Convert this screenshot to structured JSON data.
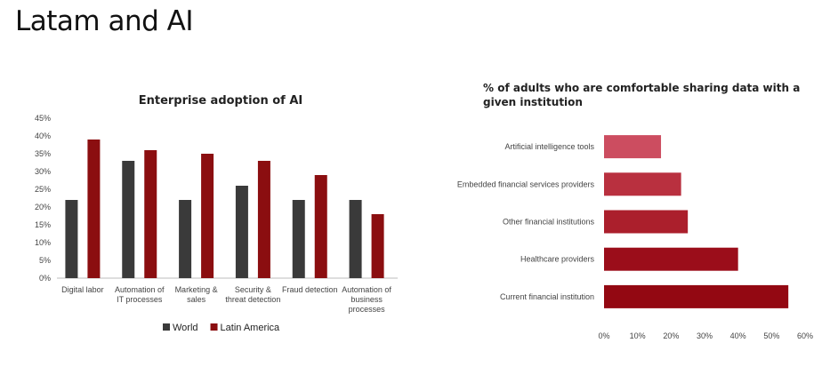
{
  "slide": {
    "title": "Latam and AI"
  },
  "chart_data": [
    {
      "type": "bar",
      "title": "Enterprise adoption of AI",
      "categories": [
        [
          "Digital labor"
        ],
        [
          "Automation of",
          "IT processes"
        ],
        [
          "Marketing &",
          "sales"
        ],
        [
          "Security &",
          "threat detection"
        ],
        [
          "Fraud detection"
        ],
        [
          "Automation of",
          "business",
          "processes"
        ]
      ],
      "series": [
        {
          "name": "World",
          "color": "#3a3a3a",
          "values": [
            22,
            33,
            22,
            26,
            22,
            22
          ]
        },
        {
          "name": "Latin America",
          "color": "#8b0e10",
          "values": [
            39,
            36,
            35,
            33,
            29,
            18
          ]
        }
      ],
      "yticks": [
        "0%",
        "5%",
        "10%",
        "15%",
        "20%",
        "25%",
        "30%",
        "35%",
        "40%",
        "45%"
      ],
      "ylim": [
        0,
        45
      ],
      "grid": false,
      "legend": "bottom"
    },
    {
      "type": "bar",
      "orientation": "horizontal",
      "title": [
        "% of adults who are comfortable sharing data with a",
        "given institution"
      ],
      "categories": [
        "Artificial intelligence tools",
        "Embedded financial services providers",
        "Other financial institutions",
        "Healthcare providers",
        "Current financial institution"
      ],
      "values": [
        17,
        23,
        25,
        40,
        55
      ],
      "colors": [
        "#cc4d60",
        "#b9303f",
        "#ab1f2c",
        "#9b0d1a",
        "#930812"
      ],
      "xticks": [
        "0%",
        "10%",
        "20%",
        "30%",
        "40%",
        "50%",
        "60%"
      ],
      "xlim": [
        0,
        60
      ],
      "grid": false
    }
  ]
}
